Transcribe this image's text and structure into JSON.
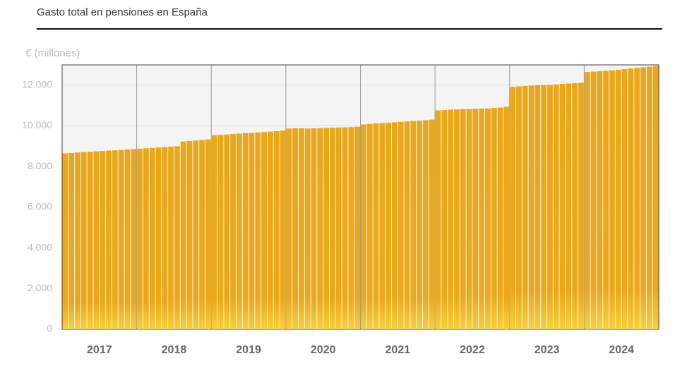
{
  "chart_data": {
    "type": "bar",
    "subtitle": "Gasto total en pensiones en España",
    "y_label": "€ (millones)",
    "color": "#e9a819",
    "years": [
      "2017",
      "2018",
      "2019",
      "2020",
      "2021",
      "2022",
      "2023",
      "2024"
    ],
    "categories": [
      null,
      null,
      null,
      null,
      null,
      null,
      null,
      null,
      null,
      null,
      null,
      null,
      null,
      null,
      null,
      null,
      null,
      null,
      null,
      null,
      null,
      null,
      null,
      null,
      null,
      null,
      null,
      null,
      null,
      null,
      null,
      null,
      null,
      null,
      null,
      null,
      null,
      null,
      null,
      null,
      null,
      null,
      null,
      null,
      null,
      null,
      null,
      null,
      null,
      null,
      null,
      null,
      null,
      null,
      null,
      null,
      null,
      null,
      null,
      null,
      null,
      null,
      null,
      null,
      null,
      null,
      null,
      null,
      null,
      null,
      null,
      null,
      null,
      null,
      null,
      null,
      null,
      null,
      null,
      null,
      null,
      null,
      null,
      null,
      null,
      null,
      null,
      null,
      null,
      null,
      null,
      null,
      null,
      null,
      null,
      null
    ],
    "values": [
      8650,
      8670,
      8690,
      8710,
      8730,
      8750,
      8770,
      8790,
      8800,
      8820,
      8840,
      8860,
      8880,
      8900,
      8920,
      8940,
      8960,
      8980,
      9000,
      9230,
      9260,
      9280,
      9300,
      9330,
      9540,
      9560,
      9580,
      9600,
      9620,
      9640,
      9660,
      9680,
      9700,
      9720,
      9740,
      9770,
      9870,
      9880,
      9880,
      9870,
      9880,
      9890,
      9900,
      9910,
      9920,
      9930,
      9940,
      9960,
      10070,
      10100,
      10120,
      10140,
      10160,
      10180,
      10200,
      10220,
      10240,
      10260,
      10280,
      10310,
      10760,
      10780,
      10800,
      10810,
      10820,
      10830,
      10840,
      10850,
      10860,
      10880,
      10900,
      10940,
      11920,
      11940,
      11960,
      11980,
      12000,
      12010,
      12020,
      12040,
      12060,
      12080,
      12100,
      12120,
      12650,
      12670,
      12690,
      12710,
      12730,
      12760,
      12790,
      12820,
      12850,
      12880,
      12910,
      12950
    ],
    "ylim": [
      0,
      13000
    ],
    "yticks": [
      0,
      {
        "value": 2000,
        "label": "2.000"
      },
      {
        "value": 4000,
        "label": "4.000"
      },
      {
        "value": 6000,
        "label": "6.000"
      },
      {
        "value": 8000,
        "label": "8.000"
      },
      {
        "value": 10000,
        "label": "10.000"
      },
      {
        "value": 12000,
        "label": "12.000"
      }
    ],
    "grid": true
  }
}
